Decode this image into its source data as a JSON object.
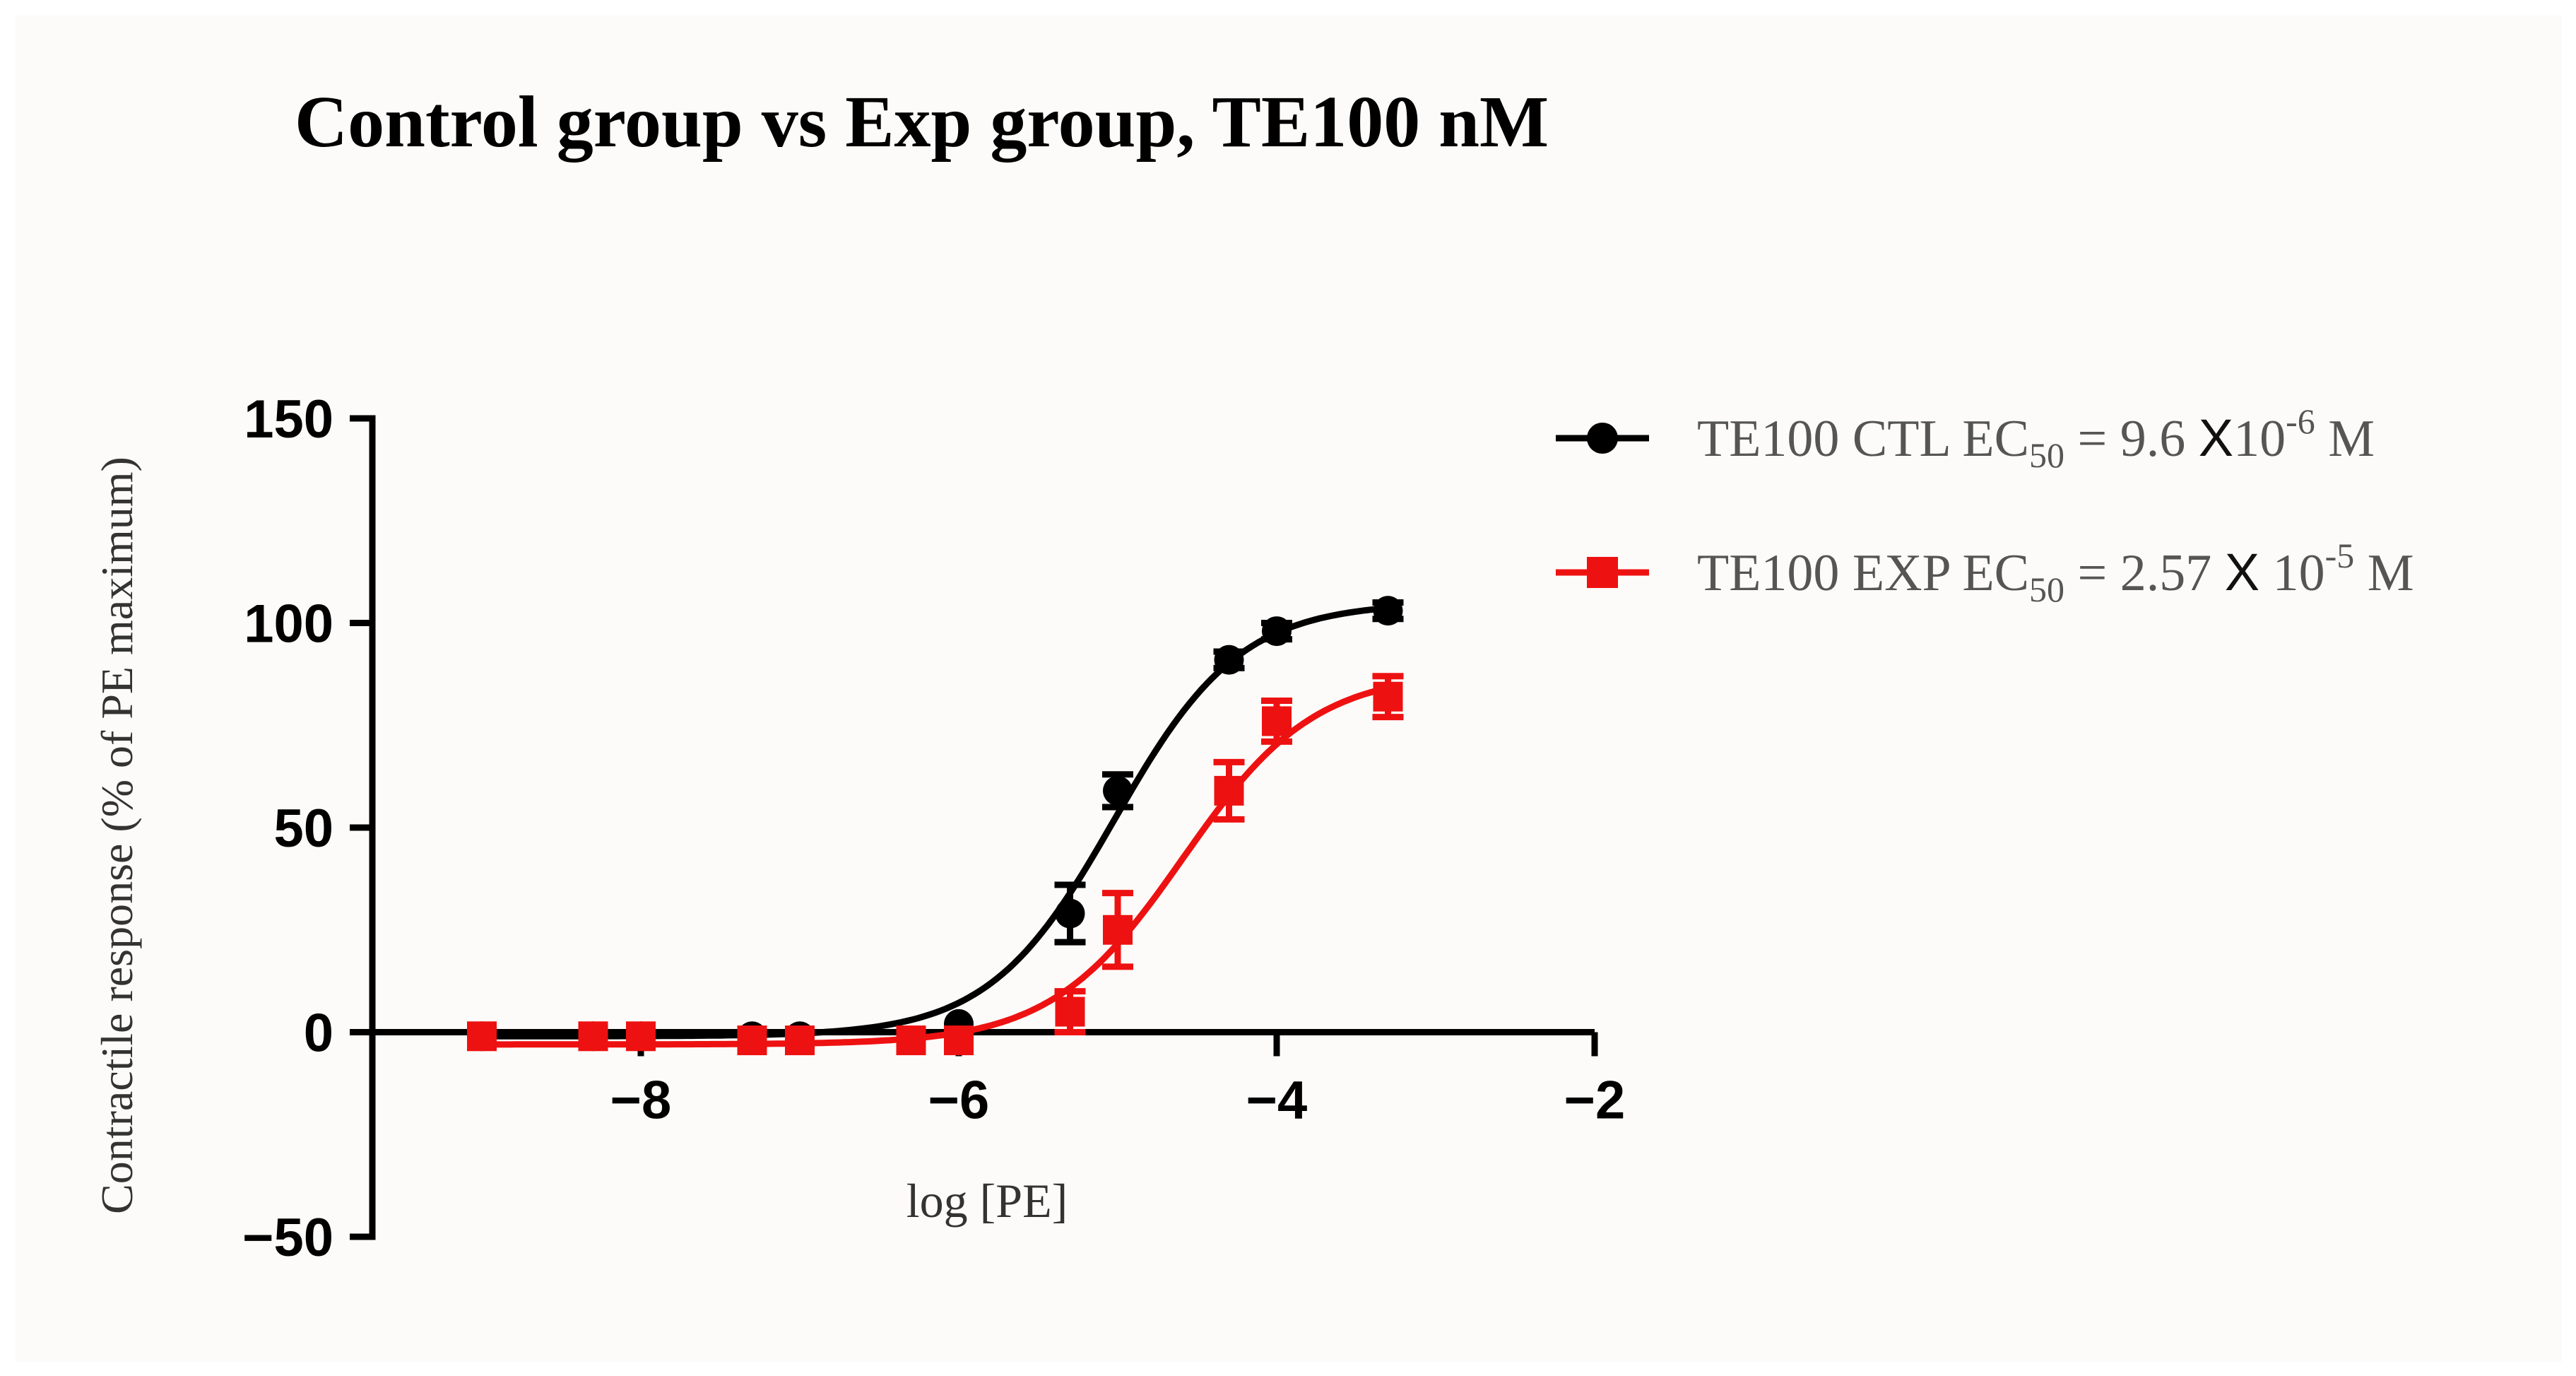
{
  "chart_data": {
    "type": "line",
    "title": "Control group vs Exp group, TE100 nM",
    "xlabel": "log [PE]",
    "ylabel": "Contractile response (% of PE maximum)",
    "xlim": [
      -9.8,
      -2
    ],
    "ylim": [
      -50,
      150
    ],
    "x_ticks": [
      -8,
      -6,
      -4,
      -2
    ],
    "x_tick_labels": [
      "−8",
      "−6",
      "−4",
      "−2"
    ],
    "y_ticks": [
      150,
      100,
      50,
      0,
      -50
    ],
    "y_tick_labels": [
      "150",
      "100",
      "50",
      "0",
      "−50"
    ],
    "legend_position": "top-right",
    "series": [
      {
        "name": "TE100 CTL",
        "legend": {
          "prefix": "TE100 CTL EC",
          "sub": "50",
          "mid": " = 9.6 ",
          "times": "X",
          "base": "10",
          "exp": "-6",
          "unit": " M"
        },
        "color": "#000000",
        "marker": "circle",
        "x": [
          -9.0,
          -8.3,
          -8.0,
          -7.3,
          -7.0,
          -6.0,
          -5.3,
          -5.0,
          -4.3,
          -4.0,
          -3.3
        ],
        "y": [
          -1,
          -1,
          -1,
          -1,
          -1,
          2,
          29,
          59,
          91,
          98,
          103
        ],
        "err": [
          0,
          0,
          0,
          0,
          0,
          0,
          7,
          4,
          2,
          2,
          2
        ],
        "fit": {
          "bottom": -1,
          "top": 105,
          "logEC50": -5.02,
          "hill": 1.1
        }
      },
      {
        "name": "TE100 EXP",
        "legend": {
          "prefix": "TE100 EXP EC",
          "sub": "50",
          "mid": " = 2.57 ",
          "times": "X",
          "base": " 10",
          "exp": "-5",
          "unit": " M"
        },
        "color": "#ee1111",
        "marker": "square",
        "x": [
          -9.0,
          -8.3,
          -8.0,
          -7.3,
          -7.0,
          -6.3,
          -6.0,
          -5.3,
          -5.0,
          -4.3,
          -4.0,
          -3.3
        ],
        "y": [
          -1,
          -1,
          -1,
          -2,
          -2,
          -2,
          -2,
          5,
          25,
          59,
          76,
          82
        ],
        "err": [
          0,
          0,
          0,
          0,
          0,
          0,
          0,
          5,
          9,
          7,
          5,
          5
        ],
        "fit": {
          "bottom": -3,
          "top": 88,
          "logEC50": -4.59,
          "hill": 1.05
        }
      }
    ]
  }
}
